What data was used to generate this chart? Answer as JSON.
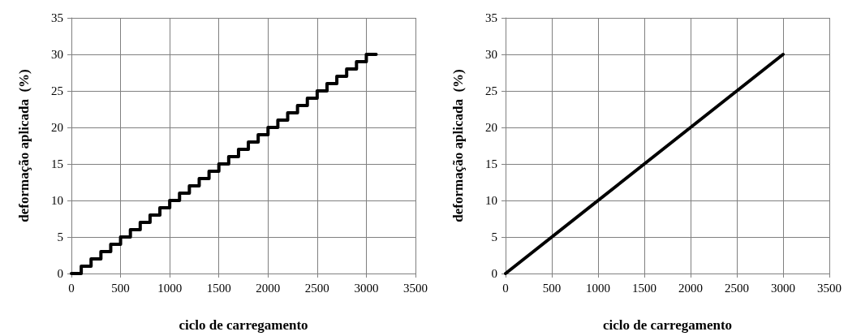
{
  "chart_data": [
    {
      "type": "step",
      "xlabel": "ciclo de carregamento",
      "ylabel": "deformação aplicada  (%)",
      "x": [
        0,
        100,
        200,
        300,
        400,
        500,
        600,
        700,
        800,
        900,
        1000,
        1100,
        1200,
        1300,
        1400,
        1500,
        1600,
        1700,
        1800,
        1900,
        2000,
        2100,
        2200,
        2300,
        2400,
        2500,
        2600,
        2700,
        2800,
        2900,
        3000,
        3100
      ],
      "series": [
        {
          "color": "#000000",
          "values": [
            0,
            1,
            2,
            3,
            4,
            5,
            6,
            7,
            8,
            9,
            10,
            11,
            12,
            13,
            14,
            15,
            16,
            17,
            18,
            19,
            20,
            21,
            22,
            23,
            24,
            25,
            26,
            27,
            28,
            29,
            30,
            30
          ]
        }
      ],
      "xlim": [
        0,
        3500
      ],
      "xticks": [
        0,
        500,
        1000,
        1500,
        2000,
        2500,
        3000,
        3500
      ],
      "ylim": [
        0,
        35
      ],
      "yticks": [
        0,
        5,
        10,
        15,
        20,
        25,
        30,
        35
      ],
      "grid": true,
      "marker": "none",
      "line_style": "solid"
    },
    {
      "type": "line",
      "xlabel": "ciclo de carregamento",
      "ylabel": "deformação aplicada  (%)",
      "x": [
        0,
        3000
      ],
      "series": [
        {
          "color": "#000000",
          "values": [
            0,
            30
          ]
        }
      ],
      "xlim": [
        0,
        3500
      ],
      "xticks": [
        0,
        500,
        1000,
        1500,
        2000,
        2500,
        3000,
        3500
      ],
      "ylim": [
        0,
        35
      ],
      "yticks": [
        0,
        5,
        10,
        15,
        20,
        25,
        30,
        35
      ],
      "grid": true,
      "marker": "none",
      "line_style": "solid"
    }
  ]
}
